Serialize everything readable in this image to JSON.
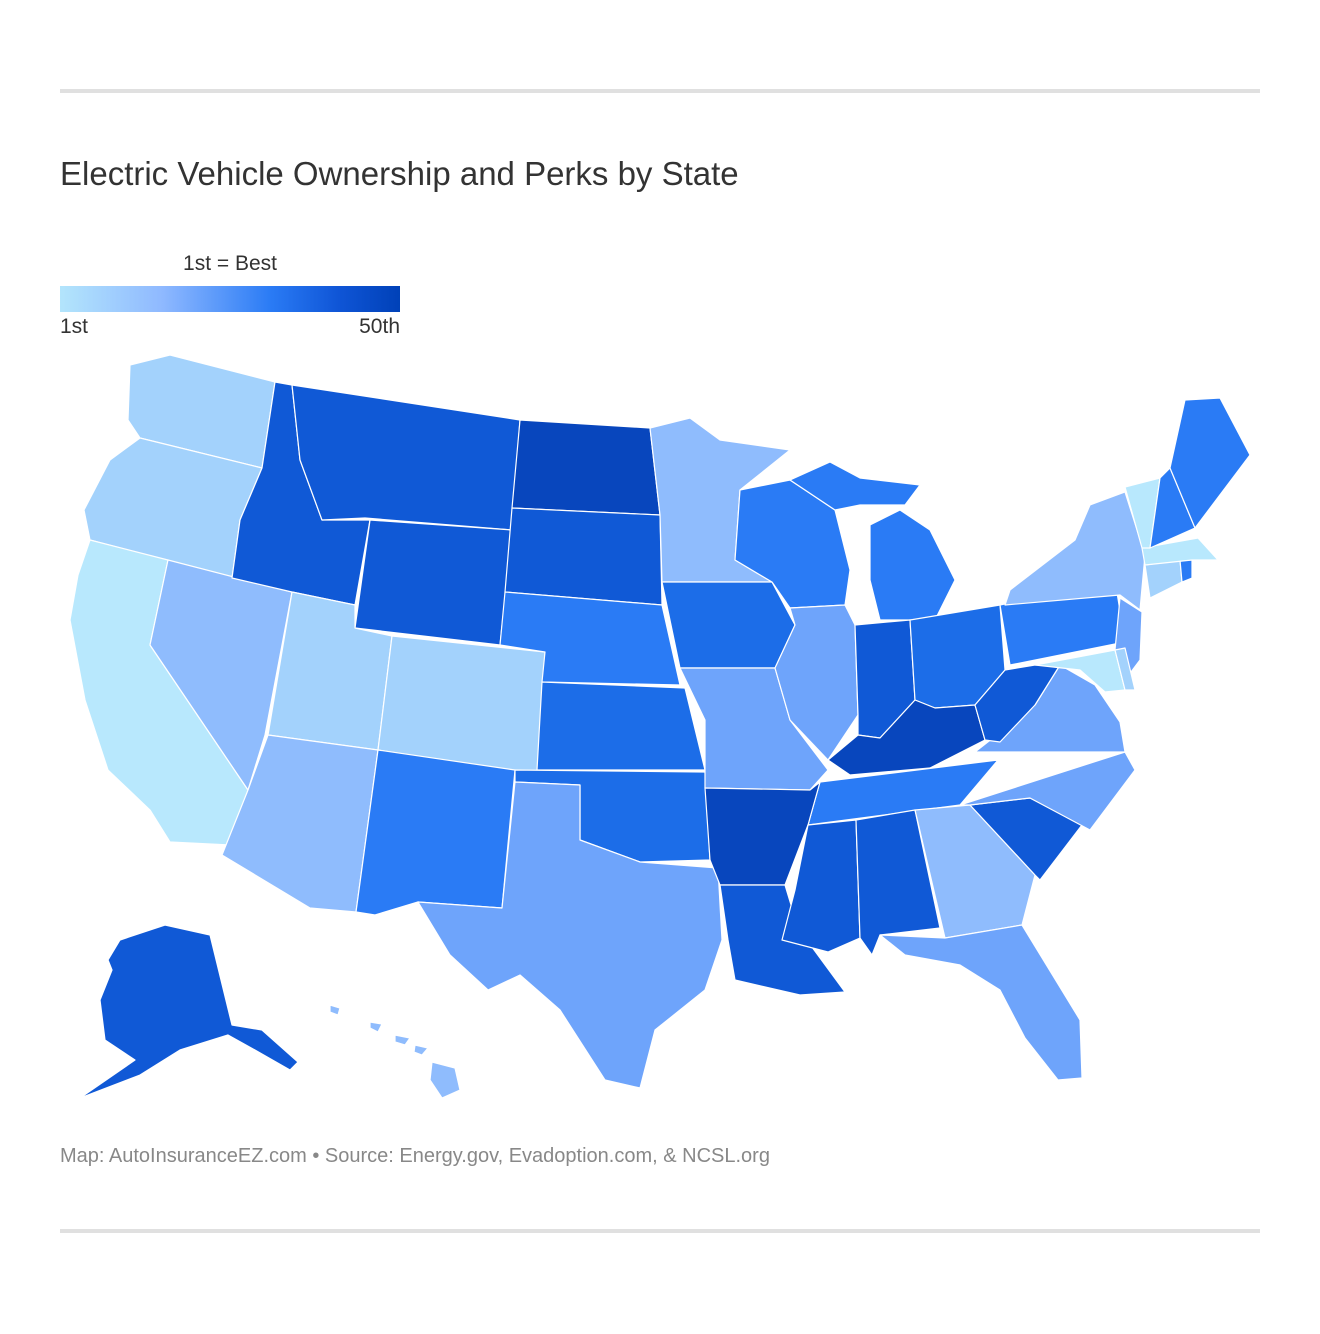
{
  "title": "Electric Vehicle Ownership and Perks by State",
  "legend": {
    "caption": "1st = Best",
    "min_label": "1st",
    "max_label": "50th",
    "color_low": "#b3e5fc",
    "color_high": "#0041b8"
  },
  "footer": "Map: AutoInsuranceEZ.com • Source: Energy.gov, Evadoption.com, & NCSL.org",
  "map": {
    "type": "choropleth",
    "region": "United States",
    "shades": {
      "tier1": "#b8e8fd",
      "tier2": "#a3d2fc",
      "tier3": "#8fbcfd",
      "tier4": "#6ea4fb",
      "tier5": "#2a7bf5",
      "tier6": "#1c6de8",
      "tier7": "#1059d6",
      "tier8": "#0846bd"
    },
    "states": [
      {
        "name": "California",
        "tier": "tier1"
      },
      {
        "name": "Vermont",
        "tier": "tier1"
      },
      {
        "name": "Massachusetts",
        "tier": "tier1"
      },
      {
        "name": "Maryland",
        "tier": "tier1"
      },
      {
        "name": "Washington",
        "tier": "tier2"
      },
      {
        "name": "Oregon",
        "tier": "tier2"
      },
      {
        "name": "Utah",
        "tier": "tier2"
      },
      {
        "name": "Colorado",
        "tier": "tier2"
      },
      {
        "name": "Connecticut",
        "tier": "tier2"
      },
      {
        "name": "Delaware",
        "tier": "tier2"
      },
      {
        "name": "Nevada",
        "tier": "tier3"
      },
      {
        "name": "Arizona",
        "tier": "tier3"
      },
      {
        "name": "Minnesota",
        "tier": "tier3"
      },
      {
        "name": "New York",
        "tier": "tier3"
      },
      {
        "name": "Georgia",
        "tier": "tier3"
      },
      {
        "name": "Hawaii",
        "tier": "tier3"
      },
      {
        "name": "Texas",
        "tier": "tier4"
      },
      {
        "name": "Missouri",
        "tier": "tier4"
      },
      {
        "name": "Illinois",
        "tier": "tier4"
      },
      {
        "name": "Florida",
        "tier": "tier4"
      },
      {
        "name": "Virginia",
        "tier": "tier4"
      },
      {
        "name": "North Carolina",
        "tier": "tier4"
      },
      {
        "name": "New Jersey",
        "tier": "tier4"
      },
      {
        "name": "Nebraska",
        "tier": "tier5"
      },
      {
        "name": "Wisconsin",
        "tier": "tier5"
      },
      {
        "name": "Michigan",
        "tier": "tier5"
      },
      {
        "name": "Tennessee",
        "tier": "tier5"
      },
      {
        "name": "Pennsylvania",
        "tier": "tier5"
      },
      {
        "name": "Maine",
        "tier": "tier5"
      },
      {
        "name": "New Hampshire",
        "tier": "tier5"
      },
      {
        "name": "Rhode Island",
        "tier": "tier5"
      },
      {
        "name": "New Mexico",
        "tier": "tier5"
      },
      {
        "name": "Kansas",
        "tier": "tier6"
      },
      {
        "name": "Oklahoma",
        "tier": "tier6"
      },
      {
        "name": "Ohio",
        "tier": "tier6"
      },
      {
        "name": "Iowa",
        "tier": "tier6"
      },
      {
        "name": "Indiana",
        "tier": "tier7"
      },
      {
        "name": "Idaho",
        "tier": "tier7"
      },
      {
        "name": "Montana",
        "tier": "tier7"
      },
      {
        "name": "Wyoming",
        "tier": "tier7"
      },
      {
        "name": "Louisiana",
        "tier": "tier7"
      },
      {
        "name": "Alaska",
        "tier": "tier7"
      },
      {
        "name": "South Carolina",
        "tier": "tier7"
      },
      {
        "name": "South Dakota",
        "tier": "tier7"
      },
      {
        "name": "West Virginia",
        "tier": "tier7"
      },
      {
        "name": "Mississippi",
        "tier": "tier7"
      },
      {
        "name": "Alabama",
        "tier": "tier7"
      },
      {
        "name": "North Dakota",
        "tier": "tier8"
      },
      {
        "name": "Arkansas",
        "tier": "tier8"
      },
      {
        "name": "Kentucky",
        "tier": "tier8"
      }
    ]
  }
}
